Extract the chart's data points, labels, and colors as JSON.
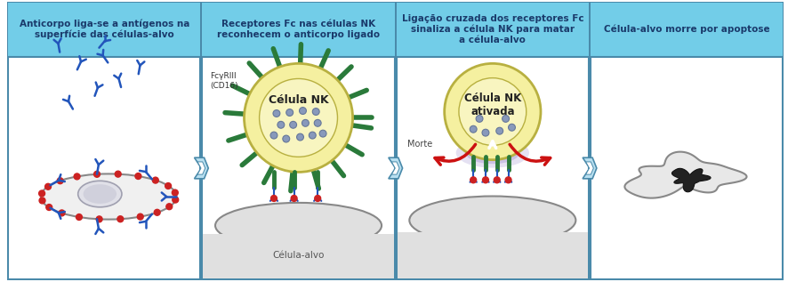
{
  "panel_titles": [
    "Anticorpo liga-se a antígenos na\nsuperfície das células-alvo",
    "Receptores Fc nas células NK\nreconhecem o anticorpo ligado",
    "Ligação cruzada dos receptores Fc\nsinaliza a célula NK para matar\na célula-alvo",
    "Célula-alvo morre por apoptose"
  ],
  "header_color": "#72cde8",
  "header_text_color": "#1a3a6b",
  "border_color": "#4a8aaa",
  "arrow_fill": "#b8dff0",
  "arrow_edge": "#4a8aaa",
  "nk_cell_yellow": "#f5f0a0",
  "nk_inner_circle": "#e8e0a0",
  "nk_outline": "#b8b040",
  "receptor_green": "#2a7a3a",
  "antibody_blue": "#2255bb",
  "antigen_red": "#cc2222",
  "granule_color": "#8899bb",
  "granule_edge": "#667799",
  "cell_fill": "#f0f0f0",
  "cell_outline": "#888888",
  "nucleus_fill": "#cccccc",
  "nucleus_grad": "#aaaaaa",
  "target_cell_fill": "#e0e0e0",
  "purple_glow": "#9988cc",
  "red_arrow": "#cc1111",
  "morte_label": "Morte",
  "celula_alvo_label": "Célula-alvo",
  "nk_label": "Célula NK",
  "nk_ativada_label": "Célula NK\nativada",
  "fcyrIII_label": "FcγRIII\n(CD16)",
  "dead_cell_fill": "#e8e8e8",
  "dead_cell_outline": "#888888",
  "dead_nucleus_fill": "#222222"
}
